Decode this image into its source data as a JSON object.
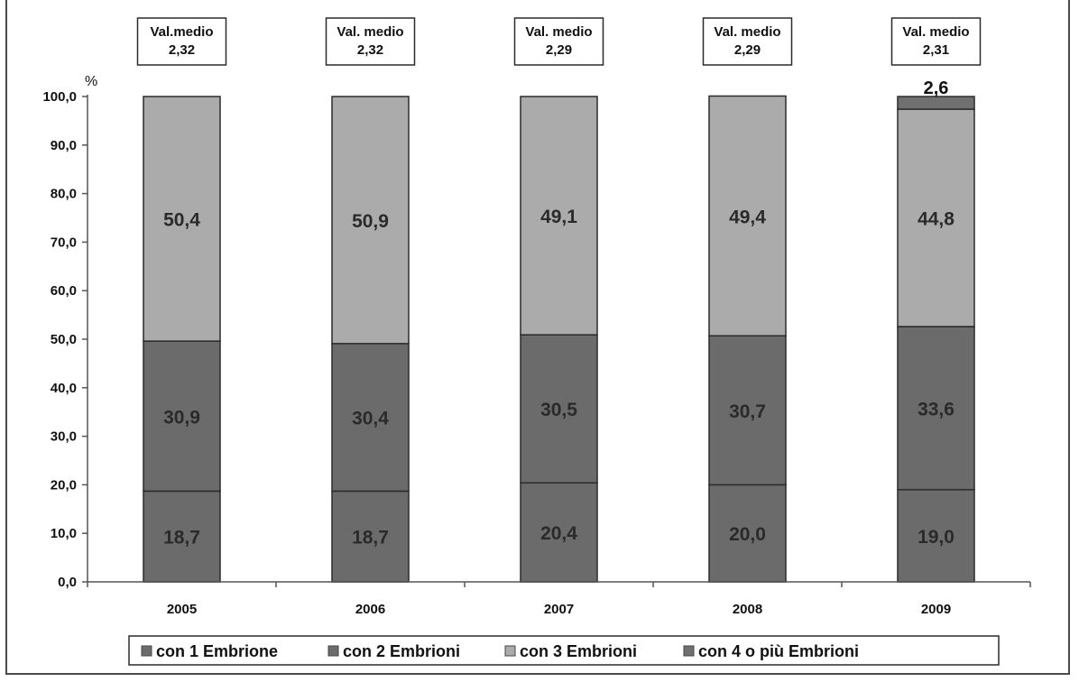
{
  "chart_data": {
    "type": "bar",
    "stacked": true,
    "categories": [
      "2005",
      "2006",
      "2007",
      "2008",
      "2009"
    ],
    "ylabel": "%",
    "ylim": [
      0,
      100
    ],
    "yticks": [
      "0,0",
      "10,0",
      "20,0",
      "30,0",
      "40,0",
      "50,0",
      "60,0",
      "70,0",
      "80,0",
      "90,0",
      "100,0"
    ],
    "series": [
      {
        "name": "con 1 Embrione",
        "values": [
          18.7,
          18.7,
          20.4,
          20.0,
          19.0
        ],
        "labels": [
          "18,7",
          "18,7",
          "20,4",
          "20,0",
          "19,0"
        ],
        "color": "#6b6b6b"
      },
      {
        "name": "con 2 Embrioni",
        "values": [
          30.9,
          30.4,
          30.5,
          30.7,
          33.6
        ],
        "labels": [
          "30,9",
          "30,4",
          "30,5",
          "30,7",
          "33,6"
        ],
        "color": "#6b6b6b"
      },
      {
        "name": "con 3 Embrioni",
        "values": [
          50.4,
          50.9,
          49.1,
          49.4,
          44.8
        ],
        "labels": [
          "50,4",
          "50,9",
          "49,1",
          "49,4",
          "44,8"
        ],
        "color": "#ababab"
      },
      {
        "name": "con 4 o più Embrioni",
        "values": [
          0,
          0,
          0,
          0,
          2.6
        ],
        "labels": [
          "",
          "",
          "",
          "",
          "2,6"
        ],
        "color": "#707070"
      }
    ],
    "annotations": [
      {
        "line1": "Val.medio",
        "line2": "2,32"
      },
      {
        "line1": "Val. medio",
        "line2": "2,32"
      },
      {
        "line1": "Val. medio",
        "line2": "2,29"
      },
      {
        "line1": "Val. medio",
        "line2": "2,29"
      },
      {
        "line1": "Val. medio",
        "line2": "2,31"
      }
    ],
    "grid": false,
    "legend_position": "bottom"
  }
}
